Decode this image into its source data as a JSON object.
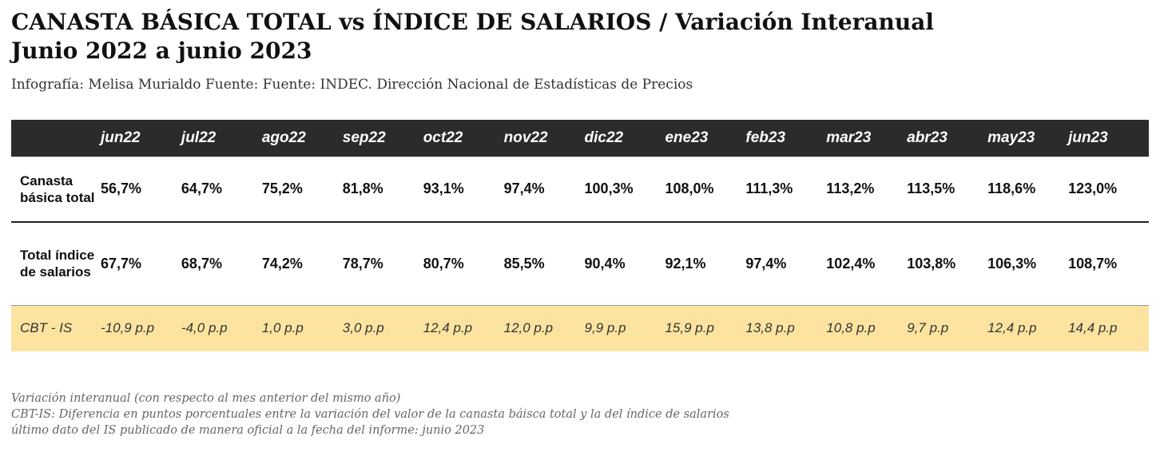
{
  "header": {
    "title_line1": "CANASTA BÁSICA TOTAL vs ÍNDICE DE SALARIOS / Variación Interanual",
    "title_line2": "Junio 2022 a junio 2023",
    "subtitle": "Infografía: Melisa Murialdo Fuente: Fuente: INDEC. Dirección Nacional de Estadísticas de Precios"
  },
  "chart_data": {
    "type": "table",
    "columns": [
      "jun22",
      "jul22",
      "ago22",
      "sep22",
      "oct22",
      "nov22",
      "dic22",
      "ene23",
      "feb23",
      "mar23",
      "abr23",
      "may23",
      "jun23"
    ],
    "rows": [
      {
        "label": "Canasta básica total",
        "values": [
          "56,7%",
          "64,7%",
          "75,2%",
          "81,8%",
          "93,1%",
          "97,4%",
          "100,3%",
          "108,0%",
          "111,3%",
          "113,2%",
          "113,5%",
          "118,6%",
          "123,0%"
        ]
      },
      {
        "label": "Total índice de salarios",
        "values": [
          "67,7%",
          "68,7%",
          "74,2%",
          "78,7%",
          "80,7%",
          "85,5%",
          "90,4%",
          "92,1%",
          "97,4%",
          "102,4%",
          "103,8%",
          "106,3%",
          "108,7%"
        ]
      },
      {
        "label": "CBT - IS",
        "values": [
          "-10,9 p.p",
          "-4,0 p.p",
          "1,0 p.p",
          "3,0 p.p",
          "12,4 p.p",
          "12,0 p.p",
          "9,9 p.p",
          "15,9 p.p",
          "13,8 p.p",
          "10,8 p.p",
          "9,7 p.p",
          "12,4 p.p",
          "14,4 p.p"
        ]
      }
    ],
    "colors": {
      "header_bg": "#2b2b2b",
      "highlight_row": "#fce4a0"
    }
  },
  "notes": [
    "Variación interanual (con respecto al mes anterior del mismo año)",
    "CBT-IS: Diferencia en puntos porcentuales entre la variación del valor de la canasta báisca total y la del índice de salarios",
    "último dato del IS publicado de manera oficial a la fecha del informe: junio 2023"
  ]
}
